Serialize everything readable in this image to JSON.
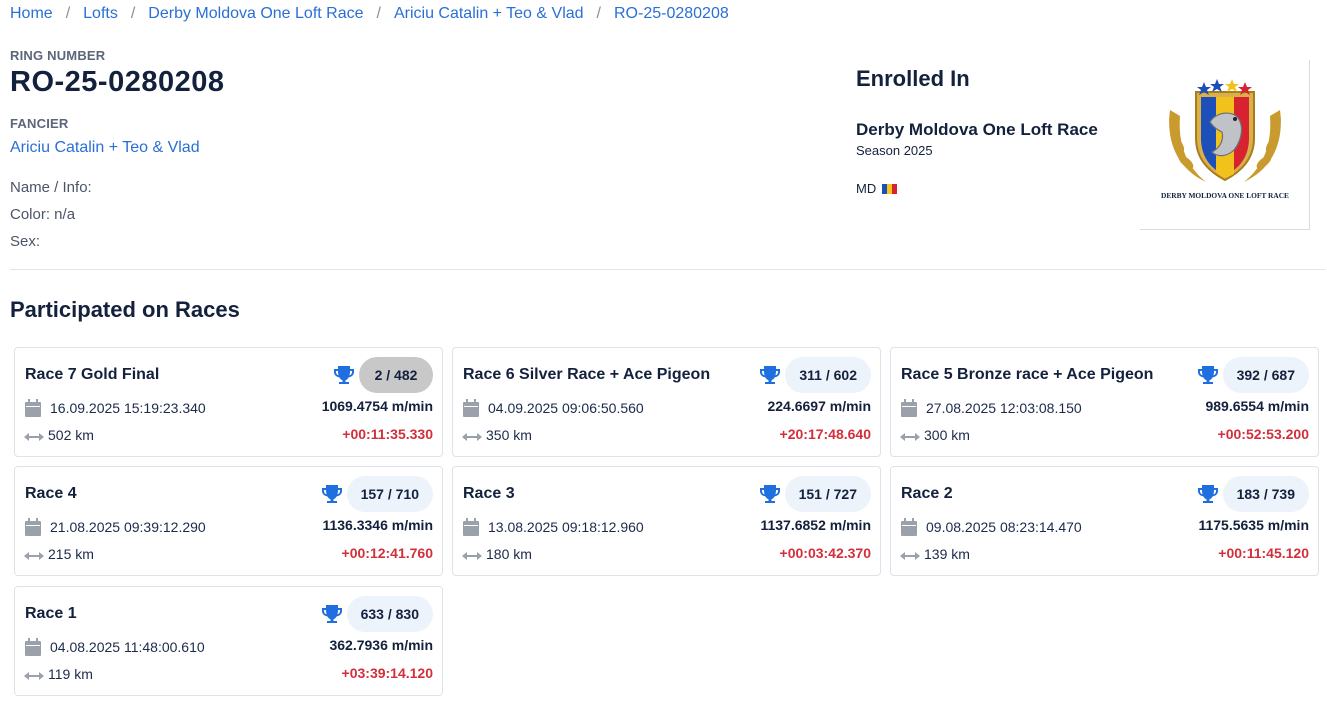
{
  "breadcrumb": [
    "Home",
    "Lofts",
    "Derby Moldova One Loft Race",
    "Ariciu Catalin + Teo & Vlad",
    "RO-25-0280208"
  ],
  "ring": {
    "label": "RING NUMBER",
    "value": "RO-25-0280208"
  },
  "fancier": {
    "label": "FANCIER",
    "name": "Ariciu Catalin + Teo & Vlad"
  },
  "info": {
    "name": "Name / Info:",
    "color": "Color: n/a",
    "sex": "Sex:"
  },
  "enrolled": {
    "title": "Enrolled In",
    "race": "Derby Moldova One Loft Race",
    "season": "Season 2025",
    "country": "MD",
    "logo_text": "DERBY MOLDOVA ONE LOFT RACE"
  },
  "section_title": "Participated on Races",
  "colors": {
    "link": "#2a6fd6",
    "negative": "#d32f3a",
    "trophy": "#1f6fe0"
  },
  "races": [
    {
      "name": "Race 7 Gold Final",
      "rank": "2 / 482",
      "date": "16.09.2025 15:19:23.340",
      "speed": "1069.4754 m/min",
      "distance": "502 km",
      "delta": "+00:11:35.330",
      "highlight": true
    },
    {
      "name": "Race 6 Silver Race + Ace Pigeon",
      "rank": "311 / 602",
      "date": "04.09.2025 09:06:50.560",
      "speed": "224.6697 m/min",
      "distance": "350 km",
      "delta": "+20:17:48.640",
      "highlight": false
    },
    {
      "name": "Race 5 Bronze race + Ace Pigeon",
      "rank": "392 / 687",
      "date": "27.08.2025 12:03:08.150",
      "speed": "989.6554 m/min",
      "distance": "300 km",
      "delta": "+00:52:53.200",
      "highlight": false
    },
    {
      "name": "Race 4",
      "rank": "157 / 710",
      "date": "21.08.2025 09:39:12.290",
      "speed": "1136.3346 m/min",
      "distance": "215 km",
      "delta": "+00:12:41.760",
      "highlight": false
    },
    {
      "name": "Race 3",
      "rank": "151 / 727",
      "date": "13.08.2025 09:18:12.960",
      "speed": "1137.6852 m/min",
      "distance": "180 km",
      "delta": "+00:03:42.370",
      "highlight": false
    },
    {
      "name": "Race 2",
      "rank": "183 / 739",
      "date": "09.08.2025 08:23:14.470",
      "speed": "1175.5635 m/min",
      "distance": "139 km",
      "delta": "+00:11:45.120",
      "highlight": false
    },
    {
      "name": "Race 1",
      "rank": "633 / 830",
      "date": "04.08.2025 11:48:00.610",
      "speed": "362.7936 m/min",
      "distance": "119 km",
      "delta": "+03:39:14.120",
      "highlight": false
    }
  ]
}
